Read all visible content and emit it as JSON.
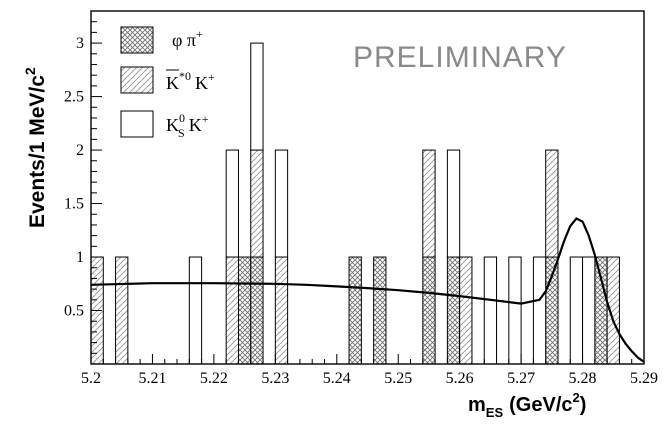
{
  "chart_data": {
    "type": "bar",
    "stacked_histogram": true,
    "x_label_base": "m",
    "x_label_sub": "ES",
    "x_label_units": "(GeV/c",
    "x_label_units_sup": "2",
    "x_label_units_close": ")",
    "y_label_base": "Events/1 MeV/c",
    "y_label_sup": "2",
    "annotation": "PRELIMINARY",
    "xlim": [
      5.2,
      5.29
    ],
    "ylim": [
      0,
      3.3
    ],
    "bin_width": 0.002,
    "x_ticks": [
      "5.2",
      "5.21",
      "5.22",
      "5.23",
      "5.24",
      "5.25",
      "5.26",
      "5.27",
      "5.28",
      "5.29"
    ],
    "y_ticks": [
      "0.5",
      "1",
      "1.5",
      "2",
      "2.5",
      "3"
    ],
    "legend_position": "top-left",
    "series": [
      {
        "key": "phipi",
        "legend_parts": [
          "φ π",
          "+"
        ],
        "pattern": "crosshatch",
        "bins": [
          [
            5.224,
            1
          ],
          [
            5.226,
            1
          ],
          [
            5.242,
            1
          ],
          [
            5.246,
            1
          ],
          [
            5.254,
            1
          ],
          [
            5.258,
            1
          ],
          [
            5.274,
            1
          ],
          [
            5.282,
            1
          ]
        ]
      },
      {
        "key": "kstark",
        "legend_parts": [
          "K",
          "*0",
          "K",
          "+"
        ],
        "pattern": "diagonal",
        "bins": [
          [
            5.2,
            1
          ],
          [
            5.204,
            1
          ],
          [
            5.222,
            1
          ],
          [
            5.226,
            1
          ],
          [
            5.23,
            1
          ],
          [
            5.254,
            1
          ],
          [
            5.26,
            1
          ],
          [
            5.274,
            1
          ],
          [
            5.284,
            1
          ]
        ]
      },
      {
        "key": "ksk",
        "legend_parts": [
          "K",
          "0",
          "S",
          "K",
          "+"
        ],
        "pattern": "none",
        "bins": [
          [
            5.216,
            1
          ],
          [
            5.222,
            1
          ],
          [
            5.226,
            1
          ],
          [
            5.23,
            1
          ],
          [
            5.258,
            1
          ],
          [
            5.264,
            1
          ],
          [
            5.268,
            1
          ],
          [
            5.272,
            1
          ],
          [
            5.278,
            1
          ],
          [
            5.28,
            1
          ]
        ]
      }
    ],
    "fit_curve": {
      "x": [
        5.2,
        5.21,
        5.22,
        5.23,
        5.235,
        5.24,
        5.245,
        5.25,
        5.255,
        5.26,
        5.265,
        5.27,
        5.273,
        5.274,
        5.275,
        5.276,
        5.277,
        5.278,
        5.279,
        5.28,
        5.281,
        5.282,
        5.283,
        5.284,
        5.285,
        5.286,
        5.287,
        5.288,
        5.289,
        5.29
      ],
      "y": [
        0.74,
        0.755,
        0.755,
        0.75,
        0.74,
        0.725,
        0.71,
        0.69,
        0.665,
        0.635,
        0.6,
        0.565,
        0.6,
        0.68,
        0.82,
        0.98,
        1.15,
        1.29,
        1.36,
        1.33,
        1.2,
        1.02,
        0.8,
        0.58,
        0.4,
        0.28,
        0.19,
        0.12,
        0.06,
        0.02
      ]
    }
  }
}
